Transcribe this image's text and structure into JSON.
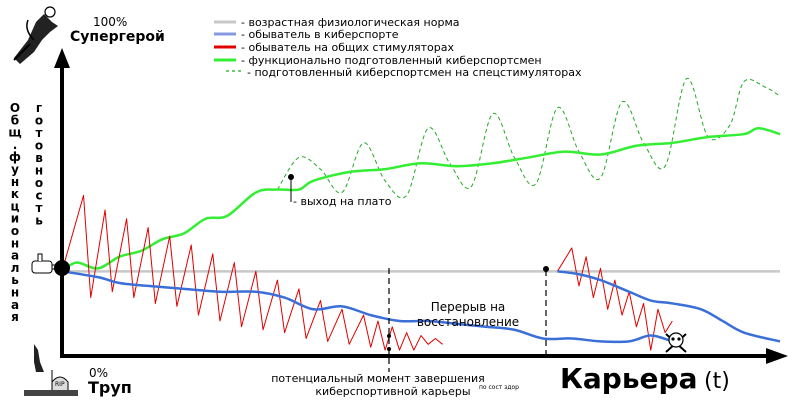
{
  "chart_data": {
    "type": "line",
    "title": "",
    "y_top_label": "100%",
    "y_top_name": "Супергерой",
    "y_bottom_label": "0%",
    "y_bottom_name": "Труп",
    "ylabel_left": "Общ. функциональная",
    "ylabel_right": "готовность",
    "xlabel": "Карьера",
    "xlabel_unit": "(t)",
    "xlim": [
      0,
      100
    ],
    "ylim": [
      0,
      100
    ],
    "legend_position": "top-center",
    "legend": [
      {
        "label": "- возрастная физиологическая норма",
        "color": "#c8c8c8",
        "style": "solid"
      },
      {
        "label": "- обыватель в киберспорте",
        "color": "#8898e0",
        "style": "solid"
      },
      {
        "label": "- обыватель на общих стимуляторах",
        "color": "#e00000",
        "style": "solid"
      },
      {
        "label": "- функционально подготовленный киберспортсмен",
        "color": "#33ee33",
        "style": "solid"
      },
      {
        "label": "- подготовленный киберспортсмен на спецстимуляторах",
        "color": "#22aa22",
        "style": "dashed"
      }
    ],
    "annotations": {
      "plateau": "- выход на плато",
      "break": "Перерыв на восстановление",
      "career_end_line1": "потенциальный момент завершения",
      "career_end_line2": "киберспортивной карьеры",
      "health_note": "по сост здор"
    },
    "series": [
      {
        "key": "norm",
        "color": "#c8c8c8",
        "x": [
          0,
          100
        ],
        "y": [
          29,
          29
        ]
      },
      {
        "key": "regular_blue",
        "color": "#3a6fd8",
        "x": [
          0,
          5,
          8,
          12,
          17,
          22,
          27,
          31,
          35,
          39,
          43,
          47,
          51,
          55,
          59,
          63,
          67,
          71,
          75,
          79,
          82,
          85
        ],
        "y": [
          29,
          27,
          25,
          24,
          23,
          22,
          22,
          20,
          16,
          17,
          14,
          12,
          12,
          11,
          10,
          9,
          6,
          6,
          5,
          5,
          7,
          5
        ]
      },
      {
        "key": "regular_blue_restart",
        "color": "#3a6fd8",
        "x": [
          69,
          72,
          75,
          79,
          82,
          85,
          89,
          92,
          95,
          100
        ],
        "y": [
          29,
          28,
          26,
          22,
          19,
          18,
          16,
          12,
          8,
          5
        ]
      },
      {
        "key": "regular_red",
        "color": "#e00000",
        "x": [
          0,
          3,
          4,
          6,
          7,
          9,
          10,
          12,
          13,
          15,
          16,
          18,
          19,
          21,
          22,
          24,
          25,
          27,
          28,
          30,
          31,
          33,
          34,
          36,
          37,
          39,
          40,
          42,
          43,
          44,
          45,
          46,
          47,
          48,
          49,
          50,
          51,
          52,
          53
        ],
        "y": [
          29,
          55,
          20,
          50,
          22,
          47,
          20,
          44,
          18,
          41,
          17,
          38,
          14,
          35,
          12,
          32,
          10,
          29,
          9,
          26,
          8,
          23,
          6,
          19,
          5,
          16,
          4,
          14,
          3,
          12,
          2,
          10,
          2,
          8,
          2,
          7,
          4,
          6,
          4
        ]
      },
      {
        "key": "regular_red_restart",
        "color": "#e00000",
        "x": [
          69,
          71,
          72,
          73,
          74,
          75,
          76,
          77,
          78,
          79,
          80,
          81,
          82,
          83,
          84,
          85
        ],
        "y": [
          29,
          37,
          24,
          34,
          20,
          30,
          16,
          26,
          14,
          22,
          10,
          18,
          2,
          16,
          8,
          12
        ]
      },
      {
        "key": "trained_green",
        "color": "#33ee33",
        "x": [
          0,
          2,
          5,
          8,
          11,
          14,
          17,
          20,
          23,
          27,
          30,
          33,
          35,
          40,
          45,
          50,
          55,
          60,
          65,
          70,
          75,
          80,
          85,
          90,
          95,
          97,
          100
        ],
        "y": [
          29,
          32,
          30,
          34,
          36,
          40,
          42,
          47,
          48,
          56,
          57,
          57,
          60,
          63,
          64,
          66,
          65,
          66,
          68,
          70,
          69,
          72,
          73,
          75,
          76,
          78,
          76
        ]
      },
      {
        "key": "stim_green_dashed",
        "color": "#22aa22",
        "x": [
          30,
          33,
          36,
          39,
          42,
          45,
          48,
          51,
          54,
          57,
          60,
          63,
          66,
          69,
          72,
          75,
          78,
          81,
          84,
          87,
          90,
          93,
          95,
          98,
          100
        ],
        "y": [
          57,
          68,
          64,
          56,
          73,
          60,
          55,
          78,
          66,
          58,
          83,
          68,
          59,
          85,
          70,
          61,
          87,
          73,
          65,
          95,
          75,
          79,
          94,
          92,
          89
        ]
      }
    ]
  },
  "icons": {
    "top": "superhero-icon",
    "bottom": "grave-icon",
    "hand": "hand-icon",
    "skull": "skull-icon"
  },
  "grave_text": "RIP"
}
